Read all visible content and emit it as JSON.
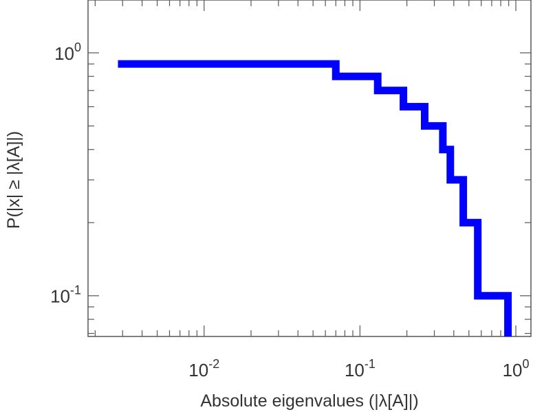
{
  "chart_data": {
    "type": "line",
    "step": true,
    "xscale": "log",
    "yscale": "log",
    "xlim": [
      0.0018,
      1.25
    ],
    "ylim": [
      0.068,
      1.65
    ],
    "grid": false,
    "xlabel": "Absolute eigenvalues (|λ[A]|)",
    "ylabel": "P(|x| ≥ |λ[A]|)",
    "x_ticks": [
      {
        "value": 0.01,
        "base": "10",
        "exp": "-2"
      },
      {
        "value": 0.1,
        "base": "10",
        "exp": "-1"
      },
      {
        "value": 1,
        "base": "10",
        "exp": "0"
      }
    ],
    "y_ticks": [
      {
        "value": 0.1,
        "base": "10",
        "exp": "-1"
      },
      {
        "value": 1,
        "base": "10",
        "exp": "0"
      }
    ],
    "series": [
      {
        "color": "#0000ff",
        "x": [
          0.0028,
          0.07,
          0.07,
          0.13,
          0.13,
          0.19,
          0.19,
          0.26,
          0.26,
          0.34,
          0.34,
          0.38,
          0.38,
          0.46,
          0.46,
          0.57,
          0.57,
          0.89,
          0.89
        ],
        "y": [
          0.9,
          0.9,
          0.8,
          0.8,
          0.7,
          0.7,
          0.6,
          0.6,
          0.5,
          0.5,
          0.4,
          0.4,
          0.3,
          0.3,
          0.2,
          0.2,
          0.1,
          0.1,
          0.068
        ]
      }
    ]
  }
}
